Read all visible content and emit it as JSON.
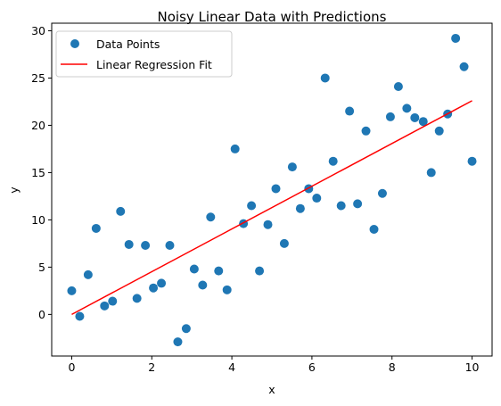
{
  "chart_data": {
    "type": "scatter",
    "title": "Noisy Linear Data with Predictions",
    "xlabel": "x",
    "ylabel": "y",
    "xlim": [
      -0.5,
      10.5
    ],
    "ylim": [
      -4.4,
      30.8
    ],
    "xticks": [
      0,
      2,
      4,
      6,
      8,
      10
    ],
    "yticks": [
      0,
      5,
      10,
      15,
      20,
      25,
      30
    ],
    "grid": false,
    "legend_position": "top-left",
    "series": [
      {
        "name": "Data Points",
        "type": "scatter",
        "color": "#1f77b4",
        "x": [
          0.0,
          0.2,
          0.41,
          0.61,
          0.82,
          1.02,
          1.22,
          1.43,
          1.63,
          1.84,
          2.04,
          2.24,
          2.45,
          2.65,
          2.86,
          3.06,
          3.27,
          3.47,
          3.67,
          3.88,
          4.08,
          4.29,
          4.49,
          4.69,
          4.9,
          5.1,
          5.31,
          5.51,
          5.71,
          5.92,
          6.12,
          6.33,
          6.53,
          6.73,
          6.94,
          7.14,
          7.35,
          7.55,
          7.76,
          7.96,
          8.16,
          8.37,
          8.57,
          8.78,
          8.98,
          9.18,
          9.39,
          9.59,
          9.8,
          10.0
        ],
        "y": [
          2.5,
          -0.2,
          4.2,
          9.1,
          0.9,
          1.4,
          10.9,
          7.4,
          1.7,
          7.3,
          2.8,
          3.3,
          7.3,
          -2.9,
          -1.5,
          4.8,
          3.1,
          10.3,
          4.6,
          2.6,
          17.5,
          9.6,
          11.5,
          4.6,
          9.5,
          13.3,
          7.5,
          15.6,
          11.2,
          13.3,
          12.3,
          25.0,
          16.2,
          11.5,
          21.5,
          11.7,
          19.4,
          9.0,
          12.8,
          20.9,
          24.1,
          21.8,
          20.8,
          20.4,
          15.0,
          19.4,
          21.2,
          29.2,
          26.2,
          16.2
        ]
      },
      {
        "name": "Linear Regression Fit",
        "type": "line",
        "color": "#ff0000",
        "x": [
          0,
          10
        ],
        "y": [
          0.0,
          22.6
        ]
      }
    ]
  }
}
